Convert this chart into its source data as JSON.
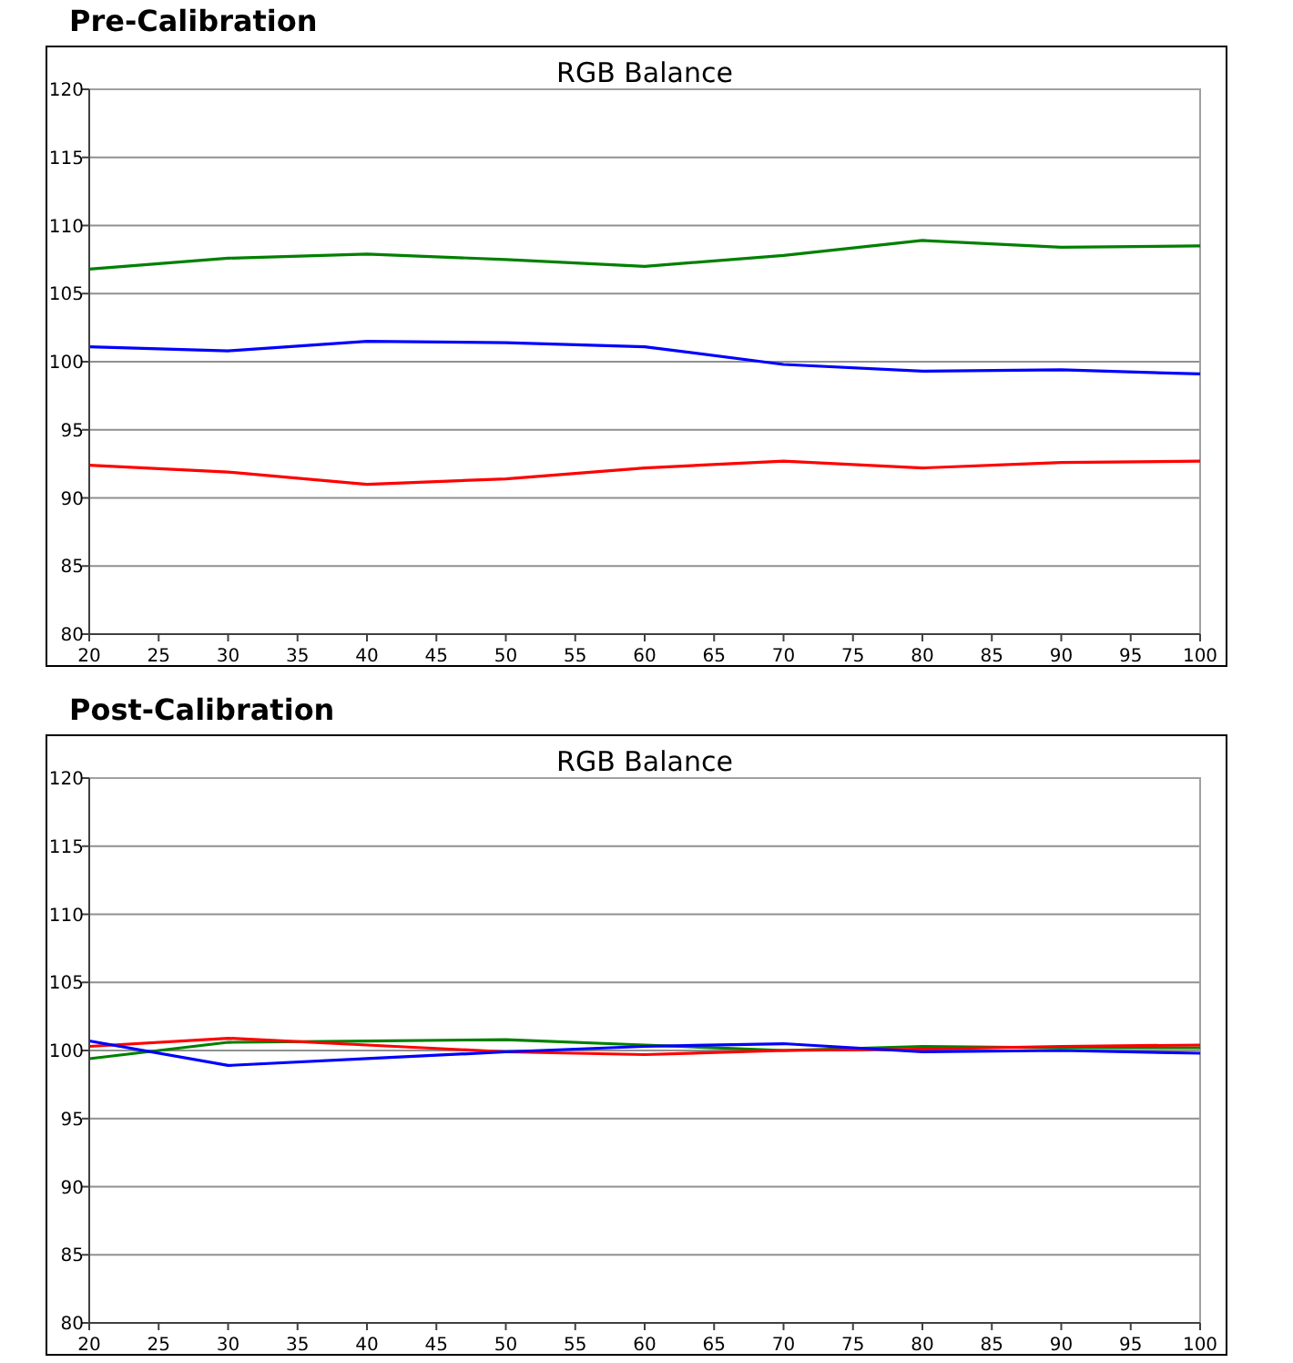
{
  "chart_data": [
    {
      "type": "line",
      "title": "Pre-Calibration",
      "subtitle": "RGB Balance",
      "x": [
        20,
        30,
        40,
        50,
        60,
        70,
        80,
        90,
        100
      ],
      "xlim": [
        20,
        100
      ],
      "xticks": [
        20,
        25,
        30,
        35,
        40,
        45,
        50,
        55,
        60,
        65,
        70,
        75,
        80,
        85,
        90,
        95,
        100
      ],
      "ylim": [
        80,
        120
      ],
      "yticks": [
        80,
        85,
        90,
        95,
        100,
        105,
        110,
        115,
        120
      ],
      "grid": "y",
      "series": [
        {
          "color": "#008000",
          "values": [
            106.8,
            107.6,
            107.9,
            107.5,
            107.0,
            107.8,
            108.9,
            108.4,
            108.5
          ]
        },
        {
          "color": "#0000ff",
          "values": [
            101.1,
            100.8,
            101.5,
            101.4,
            101.1,
            99.8,
            99.3,
            99.4,
            99.1
          ]
        },
        {
          "color": "#ff0000",
          "values": [
            92.4,
            91.9,
            91.0,
            91.4,
            92.2,
            92.7,
            92.2,
            92.6,
            92.7
          ]
        }
      ]
    },
    {
      "type": "line",
      "title": "Post-Calibration",
      "subtitle": "RGB Balance",
      "x": [
        20,
        30,
        40,
        50,
        60,
        70,
        80,
        90,
        100
      ],
      "xlim": [
        20,
        100
      ],
      "xticks": [
        20,
        25,
        30,
        35,
        40,
        45,
        50,
        55,
        60,
        65,
        70,
        75,
        80,
        85,
        90,
        95,
        100
      ],
      "ylim": [
        80,
        120
      ],
      "yticks": [
        80,
        85,
        90,
        95,
        100,
        105,
        110,
        115,
        120
      ],
      "grid": "y",
      "series": [
        {
          "color": "#008000",
          "values": [
            99.4,
            100.6,
            100.7,
            100.8,
            100.4,
            100.0,
            100.3,
            100.2,
            100.2
          ]
        },
        {
          "color": "#ff0000",
          "values": [
            100.3,
            100.9,
            100.4,
            99.9,
            99.7,
            100.0,
            100.1,
            100.3,
            100.4
          ]
        },
        {
          "color": "#0000ff",
          "values": [
            100.7,
            98.9,
            99.4,
            99.9,
            100.3,
            100.5,
            99.9,
            100.0,
            99.8
          ]
        }
      ]
    }
  ]
}
